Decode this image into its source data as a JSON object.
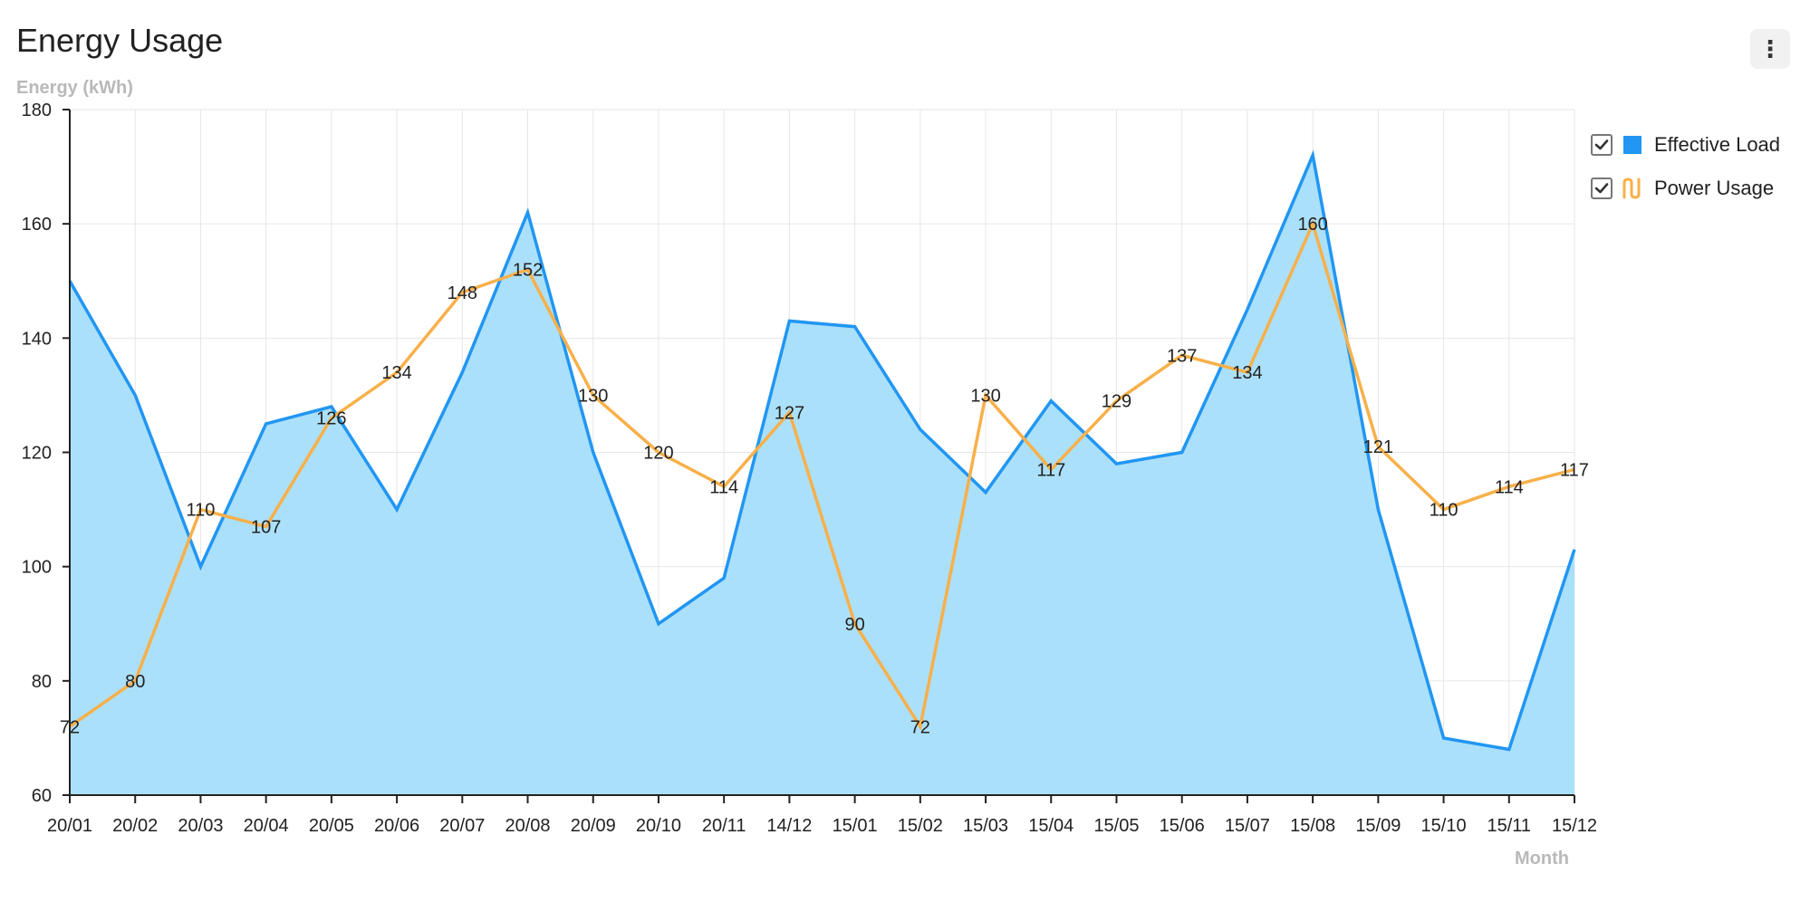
{
  "header": {
    "title": "Energy Usage",
    "menu_icon": "more-vertical-icon",
    "menu_glyph": "⋮"
  },
  "colors": {
    "effective_load": "#2196F3",
    "effective_load_fill": "#ABE0FA",
    "power_usage": "#F8B04A"
  },
  "legend": [
    {
      "label": "Effective Load",
      "checked": true,
      "icon": "square"
    },
    {
      "label": "Power Usage",
      "checked": true,
      "icon": "line"
    }
  ],
  "chart_data": {
    "type": "area",
    "title": "Energy Usage",
    "ylabel": "Energy (kWh)",
    "xlabel": "Month",
    "ylim": [
      60,
      180
    ],
    "yticks": [
      60,
      80,
      100,
      120,
      140,
      160,
      180
    ],
    "grid": true,
    "legend_position": "top-right",
    "categories": [
      "20/01",
      "20/02",
      "20/03",
      "20/04",
      "20/05",
      "20/06",
      "20/07",
      "20/08",
      "20/09",
      "20/10",
      "20/11",
      "14/12",
      "15/01",
      "15/02",
      "15/03",
      "15/04",
      "15/05",
      "15/06",
      "15/07",
      "15/08",
      "15/09",
      "15/10",
      "15/11",
      "15/12"
    ],
    "series": [
      {
        "name": "Effective Load",
        "type": "area",
        "values": [
          150,
          130,
          100,
          125,
          128,
          110,
          134,
          162,
          120,
          90,
          98,
          143,
          142,
          124,
          113,
          129,
          118,
          120,
          145,
          172,
          110,
          70,
          68,
          103
        ]
      },
      {
        "name": "Power Usage",
        "type": "line",
        "data_labels": true,
        "values": [
          72,
          80,
          110,
          107,
          126,
          134,
          148,
          152,
          130,
          120,
          114,
          127,
          90,
          72,
          130,
          117,
          129,
          137,
          134,
          160,
          121,
          110,
          114,
          117
        ]
      }
    ]
  }
}
